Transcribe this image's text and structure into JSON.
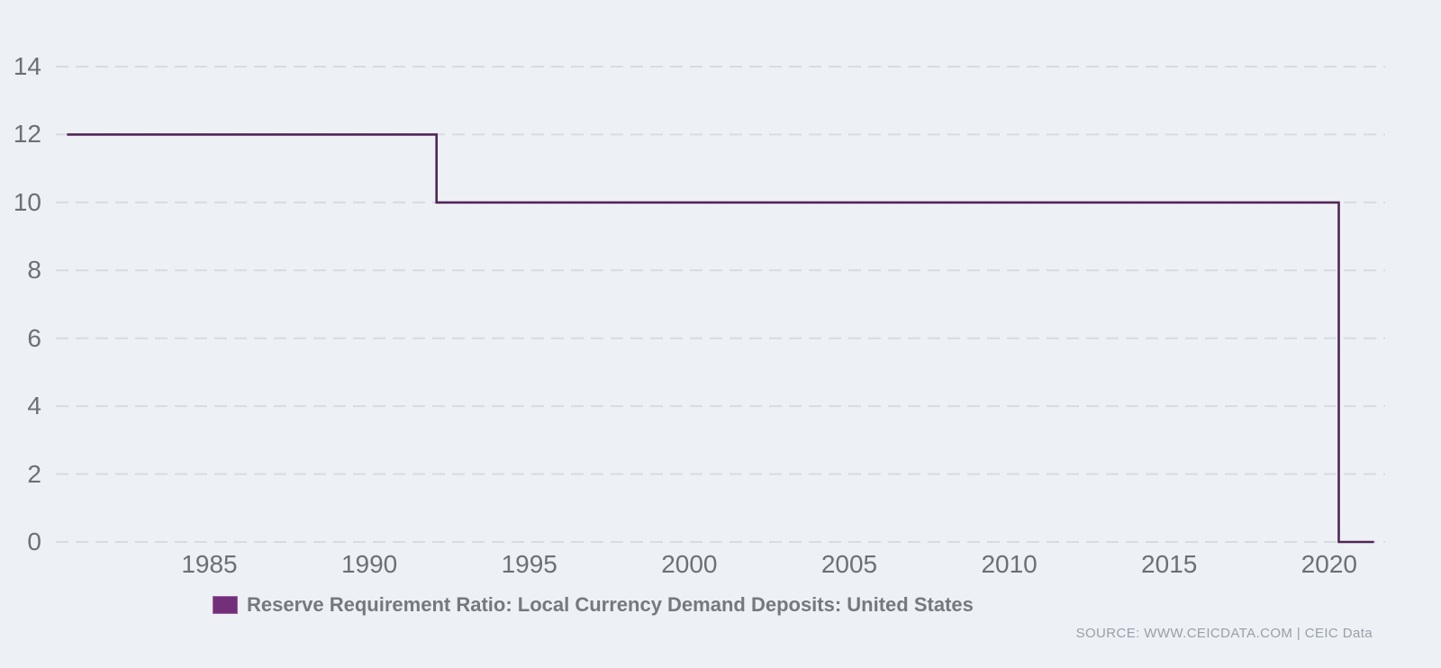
{
  "colors": {
    "background": "#edf1f5",
    "gridline": "#d8dce1",
    "line": "#512558",
    "legend_swatch": "#72307a",
    "legend_swatch_border": "#9b62a2",
    "axis_label": "#6b7076",
    "legend_text": "#75797e",
    "source_text": "#98a0a8"
  },
  "chart_data": {
    "type": "line",
    "title": "",
    "xlabel": "",
    "ylabel": "",
    "x_unit": "year",
    "y_unit": "percent",
    "xlim": [
      1980.2,
      2021.75
    ],
    "ylim": [
      0,
      14
    ],
    "x_ticks": [
      1985,
      1990,
      1995,
      2000,
      2005,
      2010,
      2015,
      2020
    ],
    "y_ticks": [
      0,
      2,
      4,
      6,
      8,
      10,
      12,
      14
    ],
    "grid": "horizontal-dashed",
    "legend_position": "bottom-center",
    "series": [
      {
        "name": "Reserve Requirement Ratio: Local Currency Demand Deposits: United States",
        "step": true,
        "points": [
          [
            1980.55,
            12
          ],
          [
            1992.1,
            12
          ],
          [
            1992.1,
            10
          ],
          [
            2020.3,
            10
          ],
          [
            2020.3,
            0
          ],
          [
            2021.4,
            0
          ]
        ],
        "key_events": [
          {
            "x": 1992.1,
            "note": "ratio lowered from 12 to 10"
          },
          {
            "x": 2020.3,
            "note": "ratio lowered from 10 to 0"
          }
        ]
      }
    ]
  },
  "legend": {
    "label": "Reserve Requirement Ratio: Local Currency Demand Deposits: United States"
  },
  "source": {
    "text": "SOURCE: WWW.CEICDATA.COM | CEIC Data"
  }
}
